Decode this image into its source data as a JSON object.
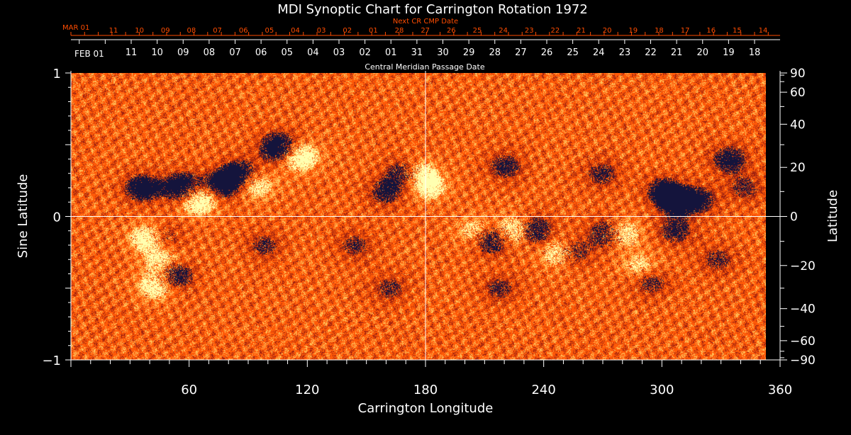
{
  "chart_data": {
    "type": "heatmap",
    "title": "MDI Synoptic Chart for Carrington Rotation 1972",
    "xlabel": "Carrington Longitude",
    "ylabel_left": "Sine Latitude",
    "ylabel_right": "Latitude",
    "xlim": [
      0,
      360
    ],
    "ylim": [
      -1,
      1
    ],
    "x_ticks": [
      60,
      120,
      180,
      240,
      300,
      360
    ],
    "y_ticks_left": [
      {
        "value": 1,
        "label": "1"
      },
      {
        "value": 0,
        "label": "0"
      },
      {
        "value": -1,
        "label": "−1"
      }
    ],
    "lat_ticks_right": [
      {
        "deg": 90,
        "label": "90"
      },
      {
        "deg": 60,
        "label": "60"
      },
      {
        "deg": 40,
        "label": "40"
      },
      {
        "deg": 20,
        "label": "20"
      },
      {
        "deg": 0,
        "label": "0"
      },
      {
        "deg": -20,
        "label": "−20"
      },
      {
        "deg": -40,
        "label": "−40"
      },
      {
        "deg": -60,
        "label": "−60"
      },
      {
        "deg": -90,
        "label": "−90"
      }
    ],
    "top_axis_label": "Next CR CMP Date",
    "top_axis_month": "MAR 01",
    "top_axis_days": [
      "11",
      "10",
      "09",
      "08",
      "07",
      "06",
      "05",
      "04",
      "03",
      "02",
      "01",
      "28",
      "27",
      "26",
      "25",
      "24",
      "23",
      "22",
      "21",
      "20",
      "19",
      "18",
      "17",
      "16",
      "15",
      "14"
    ],
    "bottom_axis_label": "Central Meridian Passage Date",
    "bottom_axis_month": "FEB 01",
    "bottom_axis_days": [
      "11",
      "10",
      "09",
      "08",
      "07",
      "06",
      "05",
      "04",
      "03",
      "02",
      "01",
      "31",
      "30",
      "29",
      "28",
      "27",
      "26",
      "25",
      "24",
      "23",
      "22",
      "21",
      "20",
      "19",
      "18"
    ],
    "crosshair": {
      "longitude": 180,
      "sine_latitude": 0
    },
    "colors": {
      "background": "#ff5a08",
      "positive_field": "#ffffb0",
      "negative_field": "#14143c",
      "texture_dark": "#9e2210",
      "texture_light": "#ffc15a",
      "axis": "#ffffff",
      "secondary_axis": "#ff4c00"
    },
    "active_regions": [
      {
        "lon": 37,
        "sinlat": 0.2,
        "polarity": "negative",
        "strength": 0.7
      },
      {
        "lon": 58,
        "sinlat": 0.2,
        "polarity": "negative",
        "strength": 1.0
      },
      {
        "lon": 66,
        "sinlat": 0.12,
        "polarity": "positive",
        "strength": 1.0
      },
      {
        "lon": 78,
        "sinlat": 0.22,
        "polarity": "negative",
        "strength": 0.8
      },
      {
        "lon": 88,
        "sinlat": 0.3,
        "polarity": "negative",
        "strength": 0.7
      },
      {
        "lon": 96,
        "sinlat": 0.22,
        "polarity": "positive",
        "strength": 0.6
      },
      {
        "lon": 108,
        "sinlat": 0.48,
        "polarity": "negative",
        "strength": 1.0
      },
      {
        "lon": 118,
        "sinlat": 0.42,
        "polarity": "positive",
        "strength": 0.9
      },
      {
        "lon": 163,
        "sinlat": 0.17,
        "polarity": "negative",
        "strength": 0.5
      },
      {
        "lon": 173,
        "sinlat": 0.3,
        "polarity": "negative",
        "strength": 0.7
      },
      {
        "lon": 180,
        "sinlat": 0.3,
        "polarity": "positive",
        "strength": 0.7
      },
      {
        "lon": 186,
        "sinlat": 0.2,
        "polarity": "positive",
        "strength": 0.5
      },
      {
        "lon": 225,
        "sinlat": 0.35,
        "polarity": "negative",
        "strength": 0.5
      },
      {
        "lon": 275,
        "sinlat": 0.3,
        "polarity": "negative",
        "strength": 0.45
      },
      {
        "lon": 307,
        "sinlat": 0.18,
        "polarity": "negative",
        "strength": 0.6
      },
      {
        "lon": 313,
        "sinlat": 0.1,
        "polarity": "negative",
        "strength": 0.5
      },
      {
        "lon": 325,
        "sinlat": 0.12,
        "polarity": "negative",
        "strength": 0.55
      },
      {
        "lon": 341,
        "sinlat": 0.4,
        "polarity": "negative",
        "strength": 0.6
      },
      {
        "lon": 349,
        "sinlat": 0.2,
        "polarity": "negative",
        "strength": 0.4
      },
      {
        "lon": 40,
        "sinlat": -0.15,
        "polarity": "positive",
        "strength": 0.8
      },
      {
        "lon": 48,
        "sinlat": -0.15,
        "polarity": "negative",
        "strength": 0.5
      },
      {
        "lon": 48,
        "sinlat": -0.32,
        "polarity": "positive",
        "strength": 0.7
      },
      {
        "lon": 53,
        "sinlat": -0.4,
        "polarity": "negative",
        "strength": 0.9
      },
      {
        "lon": 44,
        "sinlat": -0.48,
        "polarity": "positive",
        "strength": 0.7
      },
      {
        "lon": 100,
        "sinlat": -0.2,
        "polarity": "negative",
        "strength": 0.4
      },
      {
        "lon": 147,
        "sinlat": -0.2,
        "polarity": "negative",
        "strength": 0.4
      },
      {
        "lon": 165,
        "sinlat": -0.5,
        "polarity": "negative",
        "strength": 0.4
      },
      {
        "lon": 210,
        "sinlat": -0.1,
        "polarity": "positive",
        "strength": 0.6
      },
      {
        "lon": 218,
        "sinlat": -0.15,
        "polarity": "negative",
        "strength": 0.9
      },
      {
        "lon": 230,
        "sinlat": -0.1,
        "polarity": "positive",
        "strength": 1.0
      },
      {
        "lon": 239,
        "sinlat": -0.1,
        "polarity": "negative",
        "strength": 0.9
      },
      {
        "lon": 253,
        "sinlat": -0.25,
        "polarity": "positive",
        "strength": 0.8
      },
      {
        "lon": 259,
        "sinlat": -0.25,
        "polarity": "negative",
        "strength": 0.7
      },
      {
        "lon": 278,
        "sinlat": -0.12,
        "polarity": "negative",
        "strength": 0.8
      },
      {
        "lon": 285,
        "sinlat": -0.12,
        "polarity": "positive",
        "strength": 0.8
      },
      {
        "lon": 295,
        "sinlat": -0.35,
        "polarity": "positive",
        "strength": 0.5
      },
      {
        "lon": 300,
        "sinlat": -0.45,
        "polarity": "negative",
        "strength": 0.5
      },
      {
        "lon": 313,
        "sinlat": -0.1,
        "polarity": "negative",
        "strength": 0.5
      },
      {
        "lon": 335,
        "sinlat": -0.3,
        "polarity": "negative",
        "strength": 0.4
      },
      {
        "lon": 222,
        "sinlat": -0.5,
        "polarity": "negative",
        "strength": 0.4
      }
    ]
  }
}
